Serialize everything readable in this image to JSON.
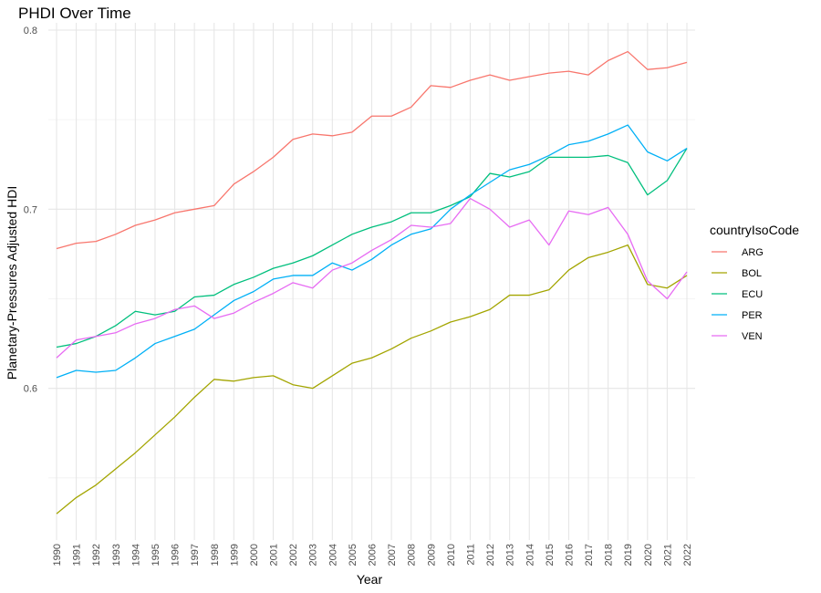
{
  "chart_data": {
    "type": "line",
    "title": "PHDI Over Time",
    "xlabel": "Year",
    "ylabel": "Planetary-Pressures Adjusted HDI",
    "x": [
      1990,
      1991,
      1992,
      1993,
      1994,
      1995,
      1996,
      1997,
      1998,
      1999,
      2000,
      2001,
      2002,
      2003,
      2004,
      2005,
      2006,
      2007,
      2008,
      2009,
      2010,
      2011,
      2012,
      2013,
      2014,
      2015,
      2016,
      2017,
      2018,
      2019,
      2020,
      2021,
      2022
    ],
    "xlim": [
      1990,
      2022
    ],
    "ylim": [
      0.528,
      0.8
    ],
    "yticks": [
      0.6,
      0.7,
      0.8
    ],
    "yticks_labels": [
      "0.6",
      "0.7",
      "0.8"
    ],
    "grid": true,
    "legend": {
      "title": "countryIsoCode",
      "position": "right"
    },
    "series": [
      {
        "name": "ARG",
        "color": "#F8766D",
        "values": [
          0.678,
          0.681,
          0.682,
          0.686,
          0.691,
          0.694,
          0.698,
          0.7,
          0.702,
          0.714,
          0.721,
          0.729,
          0.739,
          0.742,
          0.741,
          0.743,
          0.752,
          0.752,
          0.757,
          0.769,
          0.768,
          0.772,
          0.775,
          0.772,
          0.774,
          0.776,
          0.777,
          0.775,
          0.783,
          0.788,
          0.778,
          0.779,
          0.782
        ]
      },
      {
        "name": "BOL",
        "color": "#A3A500",
        "values": [
          0.53,
          0.539,
          0.546,
          0.555,
          0.564,
          0.574,
          0.584,
          0.595,
          0.605,
          0.604,
          0.606,
          0.607,
          0.602,
          0.6,
          0.607,
          0.614,
          0.617,
          0.622,
          0.628,
          0.632,
          0.637,
          0.64,
          0.644,
          0.652,
          0.652,
          0.655,
          0.666,
          0.673,
          0.676,
          0.68,
          0.658,
          0.656,
          0.663
        ]
      },
      {
        "name": "ECU",
        "color": "#00BF7D",
        "values": [
          0.623,
          0.625,
          0.629,
          0.635,
          0.643,
          0.641,
          0.643,
          0.651,
          0.652,
          0.658,
          0.662,
          0.667,
          0.67,
          0.674,
          0.68,
          0.686,
          0.69,
          0.693,
          0.698,
          0.698,
          0.702,
          0.707,
          0.72,
          0.718,
          0.721,
          0.729,
          0.729,
          0.729,
          0.73,
          0.726,
          0.708,
          0.716,
          0.734
        ]
      },
      {
        "name": "PER",
        "color": "#00B0F6",
        "values": [
          0.606,
          0.61,
          0.609,
          0.61,
          0.617,
          0.625,
          0.629,
          0.633,
          0.641,
          0.649,
          0.654,
          0.661,
          0.663,
          0.663,
          0.67,
          0.666,
          0.672,
          0.68,
          0.686,
          0.689,
          0.7,
          0.708,
          0.715,
          0.722,
          0.725,
          0.73,
          0.736,
          0.738,
          0.742,
          0.747,
          0.732,
          0.727,
          0.734
        ]
      },
      {
        "name": "VEN",
        "color": "#E76BF3",
        "values": [
          0.617,
          0.627,
          0.629,
          0.631,
          0.636,
          0.639,
          0.644,
          0.646,
          0.639,
          0.642,
          0.648,
          0.653,
          0.659,
          0.656,
          0.666,
          0.67,
          0.677,
          0.683,
          0.691,
          0.69,
          0.692,
          0.706,
          0.7,
          0.69,
          0.694,
          0.68,
          0.699,
          0.697,
          0.701,
          0.686,
          0.66,
          0.65,
          0.665
        ]
      }
    ]
  }
}
